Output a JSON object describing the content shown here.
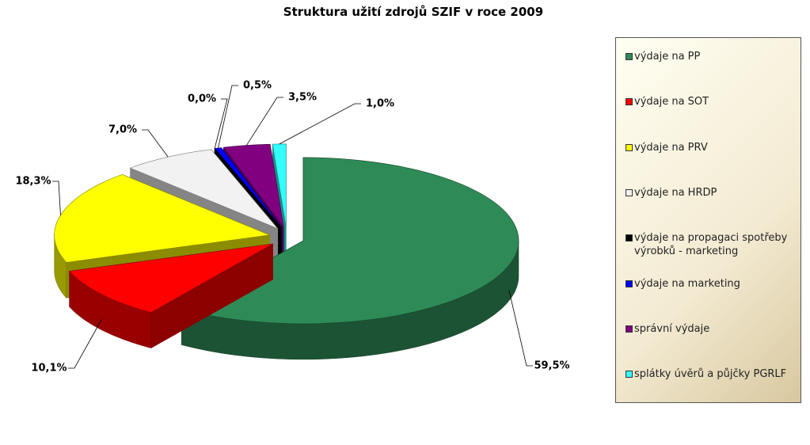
{
  "chart_data": {
    "type": "pie3d",
    "title": "Struktura užití zdrojů SZIF v roce 2009",
    "categories": [
      "výdaje na PP",
      "výdaje na SOT",
      "výdaje na PRV",
      "výdaje na HRDP",
      "výdaje na propagaci spotřeby výrobků - marketing",
      "výdaje na marketing",
      "správní výdaje",
      "splátky úvěrů a půjčky PGRLF"
    ],
    "values": [
      59.5,
      10.1,
      18.3,
      7.0,
      0.0,
      0.5,
      3.5,
      1.0
    ],
    "value_labels": [
      "59,5%",
      "10,1%",
      "18,3%",
      "7,0%",
      "0,0%",
      "0,5%",
      "3,5%",
      "1,0%"
    ],
    "colors": [
      "#2e8b57",
      "#ff0000",
      "#ffff00",
      "#f2f2f2",
      "#000000",
      "#0000ff",
      "#800080",
      "#33ffff"
    ],
    "legend": "right"
  }
}
